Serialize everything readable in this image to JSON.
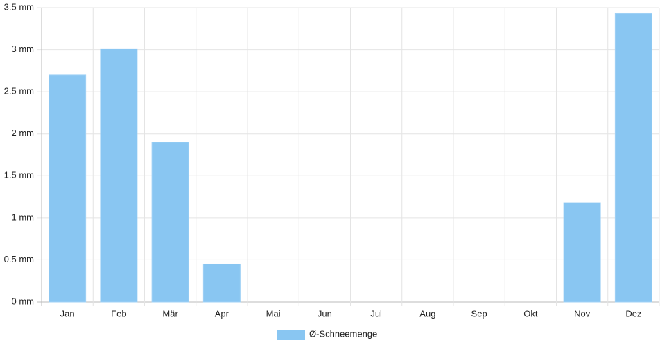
{
  "chart_data": {
    "type": "bar",
    "categories": [
      "Jan",
      "Feb",
      "Mär",
      "Apr",
      "Mai",
      "Jun",
      "Jul",
      "Aug",
      "Sep",
      "Okt",
      "Nov",
      "Dez"
    ],
    "series": [
      {
        "name": "Ø-Schneemenge",
        "color": "#89c6f2",
        "values": [
          2.7,
          3.01,
          1.9,
          0.45,
          0,
          0,
          0,
          0,
          0,
          0,
          1.18,
          3.43
        ]
      }
    ],
    "ylim": [
      0,
      3.5
    ],
    "yticks": [
      {
        "value": 0,
        "label": "0 mm"
      },
      {
        "value": 0.5,
        "label": "0.5 mm"
      },
      {
        "value": 1,
        "label": "1 mm"
      },
      {
        "value": 1.5,
        "label": "1.5 mm"
      },
      {
        "value": 2,
        "label": "2 mm"
      },
      {
        "value": 2.5,
        "label": "2.5 mm"
      },
      {
        "value": 3,
        "label": "3 mm"
      },
      {
        "value": 3.5,
        "label": "3.5 mm"
      }
    ],
    "grid": true,
    "legend": "bottom"
  }
}
